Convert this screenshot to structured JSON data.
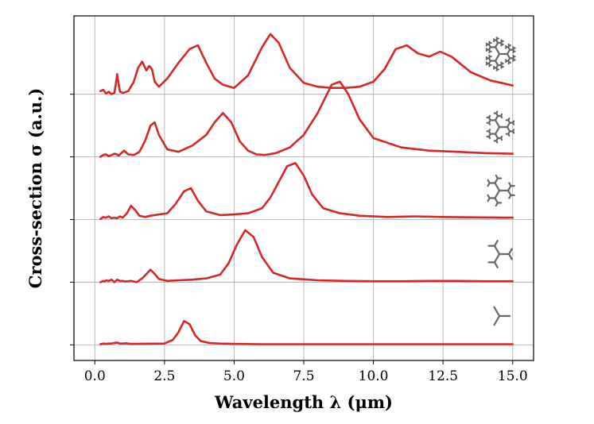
{
  "chart_data": {
    "type": "line",
    "title": "",
    "xlabel": "Wavelength λ (μm)",
    "ylabel": "Cross-section σ (a.u.)",
    "xlim": [
      -0.75,
      15.75
    ],
    "ylim": [
      -0.25,
      5.25
    ],
    "x_ticks": [
      0.0,
      2.5,
      5.0,
      7.5,
      10.0,
      12.5,
      15.0
    ],
    "x_tick_labels": [
      "0.0",
      "2.5",
      "5.0",
      "7.5",
      "10.0",
      "12.5",
      "15.0"
    ],
    "y_baselines": [
      0,
      1,
      2,
      3,
      4
    ],
    "grid": true,
    "line_color": "#d62728",
    "icon_color": "#666666",
    "x_range": [
      0.25,
      15.0
    ],
    "series": [
      {
        "name": "fractal generation 1",
        "icon": "fractal-tree-generation-1-icon",
        "offset": 0,
        "x": [
          0.2,
          0.3,
          0.4,
          0.5,
          0.6,
          0.7,
          0.8,
          0.9,
          1.0,
          1.1,
          1.2,
          1.3,
          2.5,
          2.8,
          3.0,
          3.2,
          3.4,
          3.6,
          3.8,
          4.1,
          4.5,
          5.0,
          6.0,
          7.0,
          8.0,
          9.0,
          10.0,
          11.0,
          12.0,
          13.0,
          14.0,
          15.0
        ],
        "y": [
          0.01,
          0.02,
          0.015,
          0.02,
          0.02,
          0.03,
          0.035,
          0.02,
          0.02,
          0.025,
          0.02,
          0.015,
          0.02,
          0.08,
          0.2,
          0.38,
          0.33,
          0.15,
          0.06,
          0.03,
          0.02,
          0.015,
          0.01,
          0.01,
          0.01,
          0.01,
          0.01,
          0.01,
          0.01,
          0.01,
          0.01,
          0.01
        ]
      },
      {
        "name": "fractal generation 2",
        "icon": "fractal-tree-generation-2-icon",
        "offset": 1,
        "x": [
          0.2,
          0.3,
          0.35,
          0.4,
          0.5,
          0.6,
          0.7,
          0.8,
          0.9,
          1.0,
          1.1,
          1.3,
          1.5,
          1.7,
          1.85,
          2.0,
          2.15,
          2.3,
          2.6,
          3.0,
          3.5,
          4.0,
          4.5,
          4.8,
          5.1,
          5.4,
          5.7,
          6.0,
          6.4,
          7.0,
          8.0,
          9.0,
          10.0,
          11.0,
          12.0,
          13.0,
          14.0,
          15.0
        ],
        "y": [
          0.0,
          0.02,
          0.01,
          0.03,
          0.02,
          0.04,
          0.0,
          0.04,
          0.02,
          0.02,
          0.01,
          0.02,
          0.0,
          0.06,
          0.13,
          0.2,
          0.13,
          0.05,
          0.02,
          0.03,
          0.04,
          0.06,
          0.12,
          0.3,
          0.6,
          0.83,
          0.72,
          0.4,
          0.15,
          0.06,
          0.03,
          0.02,
          0.015,
          0.015,
          0.02,
          0.02,
          0.015,
          0.015
        ]
      },
      {
        "name": "fractal generation 3",
        "icon": "fractal-tree-generation-3-icon",
        "offset": 2,
        "x": [
          0.2,
          0.3,
          0.4,
          0.5,
          0.6,
          0.7,
          0.8,
          0.9,
          1.0,
          1.15,
          1.3,
          1.45,
          1.6,
          1.8,
          2.0,
          2.3,
          2.6,
          2.9,
          3.2,
          3.45,
          3.7,
          4.0,
          4.5,
          5.0,
          5.5,
          6.0,
          6.3,
          6.6,
          6.9,
          7.2,
          7.5,
          7.8,
          8.2,
          8.8,
          9.5,
          10.5,
          11.5,
          12.5,
          13.5,
          15.0
        ],
        "y": [
          0.01,
          0.04,
          0.03,
          0.05,
          0.02,
          0.03,
          0.02,
          0.05,
          0.03,
          0.1,
          0.22,
          0.15,
          0.06,
          0.04,
          0.06,
          0.08,
          0.1,
          0.25,
          0.45,
          0.5,
          0.3,
          0.13,
          0.07,
          0.08,
          0.1,
          0.18,
          0.35,
          0.6,
          0.85,
          0.9,
          0.7,
          0.4,
          0.18,
          0.1,
          0.06,
          0.04,
          0.05,
          0.04,
          0.035,
          0.03
        ]
      },
      {
        "name": "fractal generation 4",
        "icon": "fractal-tree-generation-4-icon",
        "offset": 3,
        "x": [
          0.2,
          0.3,
          0.4,
          0.5,
          0.6,
          0.7,
          0.8,
          0.85,
          0.95,
          1.05,
          1.2,
          1.4,
          1.6,
          1.8,
          2.0,
          2.15,
          2.3,
          2.6,
          3.0,
          3.5,
          4.0,
          4.3,
          4.6,
          4.9,
          5.2,
          5.5,
          5.8,
          6.1,
          6.5,
          7.0,
          7.5,
          8.0,
          8.5,
          8.8,
          9.1,
          9.5,
          10.0,
          11.0,
          12.0,
          13.0,
          14.0,
          15.0
        ],
        "y": [
          0.0,
          0.03,
          0.04,
          0.01,
          0.03,
          0.05,
          0.04,
          0.02,
          0.06,
          0.1,
          0.04,
          0.03,
          0.08,
          0.25,
          0.5,
          0.55,
          0.35,
          0.12,
          0.08,
          0.18,
          0.35,
          0.55,
          0.7,
          0.55,
          0.25,
          0.1,
          0.04,
          0.03,
          0.06,
          0.15,
          0.35,
          0.7,
          1.15,
          1.2,
          1.0,
          0.6,
          0.3,
          0.15,
          0.1,
          0.08,
          0.06,
          0.05
        ]
      },
      {
        "name": "fractal generation 5",
        "icon": "fractal-tree-generation-5-icon",
        "offset": 4,
        "x": [
          0.2,
          0.3,
          0.4,
          0.5,
          0.6,
          0.7,
          0.75,
          0.8,
          0.85,
          0.9,
          1.0,
          1.2,
          1.4,
          1.55,
          1.7,
          1.85,
          1.95,
          2.05,
          2.15,
          2.3,
          2.6,
          3.0,
          3.4,
          3.7,
          4.0,
          4.3,
          4.6,
          5.0,
          5.5,
          6.0,
          6.3,
          6.6,
          7.0,
          7.5,
          8.0,
          8.5,
          9.0,
          9.5,
          10.0,
          10.4,
          10.8,
          11.2,
          11.6,
          12.0,
          12.4,
          12.8,
          13.5,
          14.2,
          15.0
        ],
        "y": [
          0.05,
          0.07,
          0.01,
          0.04,
          0.0,
          0.02,
          0.15,
          0.32,
          0.18,
          0.04,
          0.02,
          0.05,
          0.2,
          0.42,
          0.52,
          0.38,
          0.45,
          0.4,
          0.2,
          0.12,
          0.25,
          0.5,
          0.72,
          0.78,
          0.5,
          0.25,
          0.15,
          0.1,
          0.3,
          0.75,
          0.96,
          0.82,
          0.42,
          0.18,
          0.12,
          0.1,
          0.1,
          0.12,
          0.2,
          0.4,
          0.72,
          0.78,
          0.65,
          0.6,
          0.68,
          0.6,
          0.35,
          0.22,
          0.14
        ]
      }
    ]
  }
}
